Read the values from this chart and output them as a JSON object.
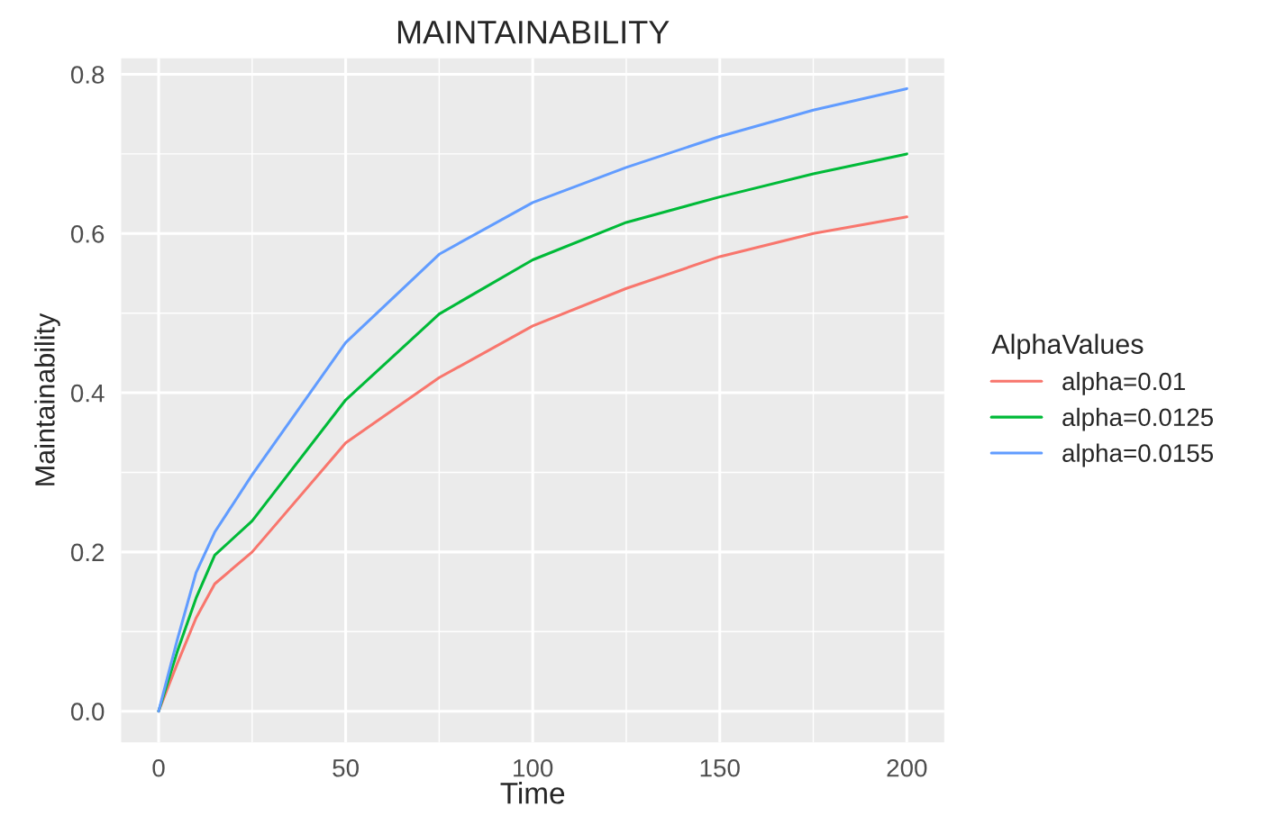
{
  "chart_data": {
    "type": "line",
    "title": "MAINTAINABILITY",
    "xlabel": "Time",
    "ylabel": "Maintainability",
    "legend_title": "AlphaValues",
    "x": [
      0,
      5,
      10,
      15,
      25,
      50,
      75,
      100,
      125,
      150,
      175,
      200
    ],
    "series": [
      {
        "name": "alpha=0.01",
        "color": "#f8766d",
        "values": [
          0,
          0.06,
          0.117,
          0.16,
          0.2,
          0.337,
          0.419,
          0.484,
          0.531,
          0.571,
          0.6,
          0.621
        ]
      },
      {
        "name": "alpha=0.0125",
        "color": "#00ba38",
        "values": [
          0,
          0.075,
          0.142,
          0.196,
          0.239,
          0.391,
          0.499,
          0.567,
          0.614,
          0.646,
          0.675,
          0.7
        ]
      },
      {
        "name": "alpha=0.0155",
        "color": "#619cff",
        "values": [
          0,
          0.09,
          0.174,
          0.225,
          0.297,
          0.463,
          0.574,
          0.639,
          0.683,
          0.722,
          0.755,
          0.782
        ]
      }
    ],
    "xlim": [
      -10,
      210
    ],
    "ylim": [
      -0.039,
      0.82
    ],
    "xticks": [
      0,
      50,
      100,
      150,
      200
    ],
    "yticks": [
      {
        "value": 0,
        "label": "0.0"
      },
      {
        "value": 0.2,
        "label": "0.2"
      },
      {
        "value": 0.4,
        "label": "0.4"
      },
      {
        "value": 0.6,
        "label": "0.6"
      },
      {
        "value": 0.8,
        "label": "0.8"
      }
    ],
    "grid": true,
    "legend": "right",
    "marker": "none",
    "line_style": "solid"
  }
}
